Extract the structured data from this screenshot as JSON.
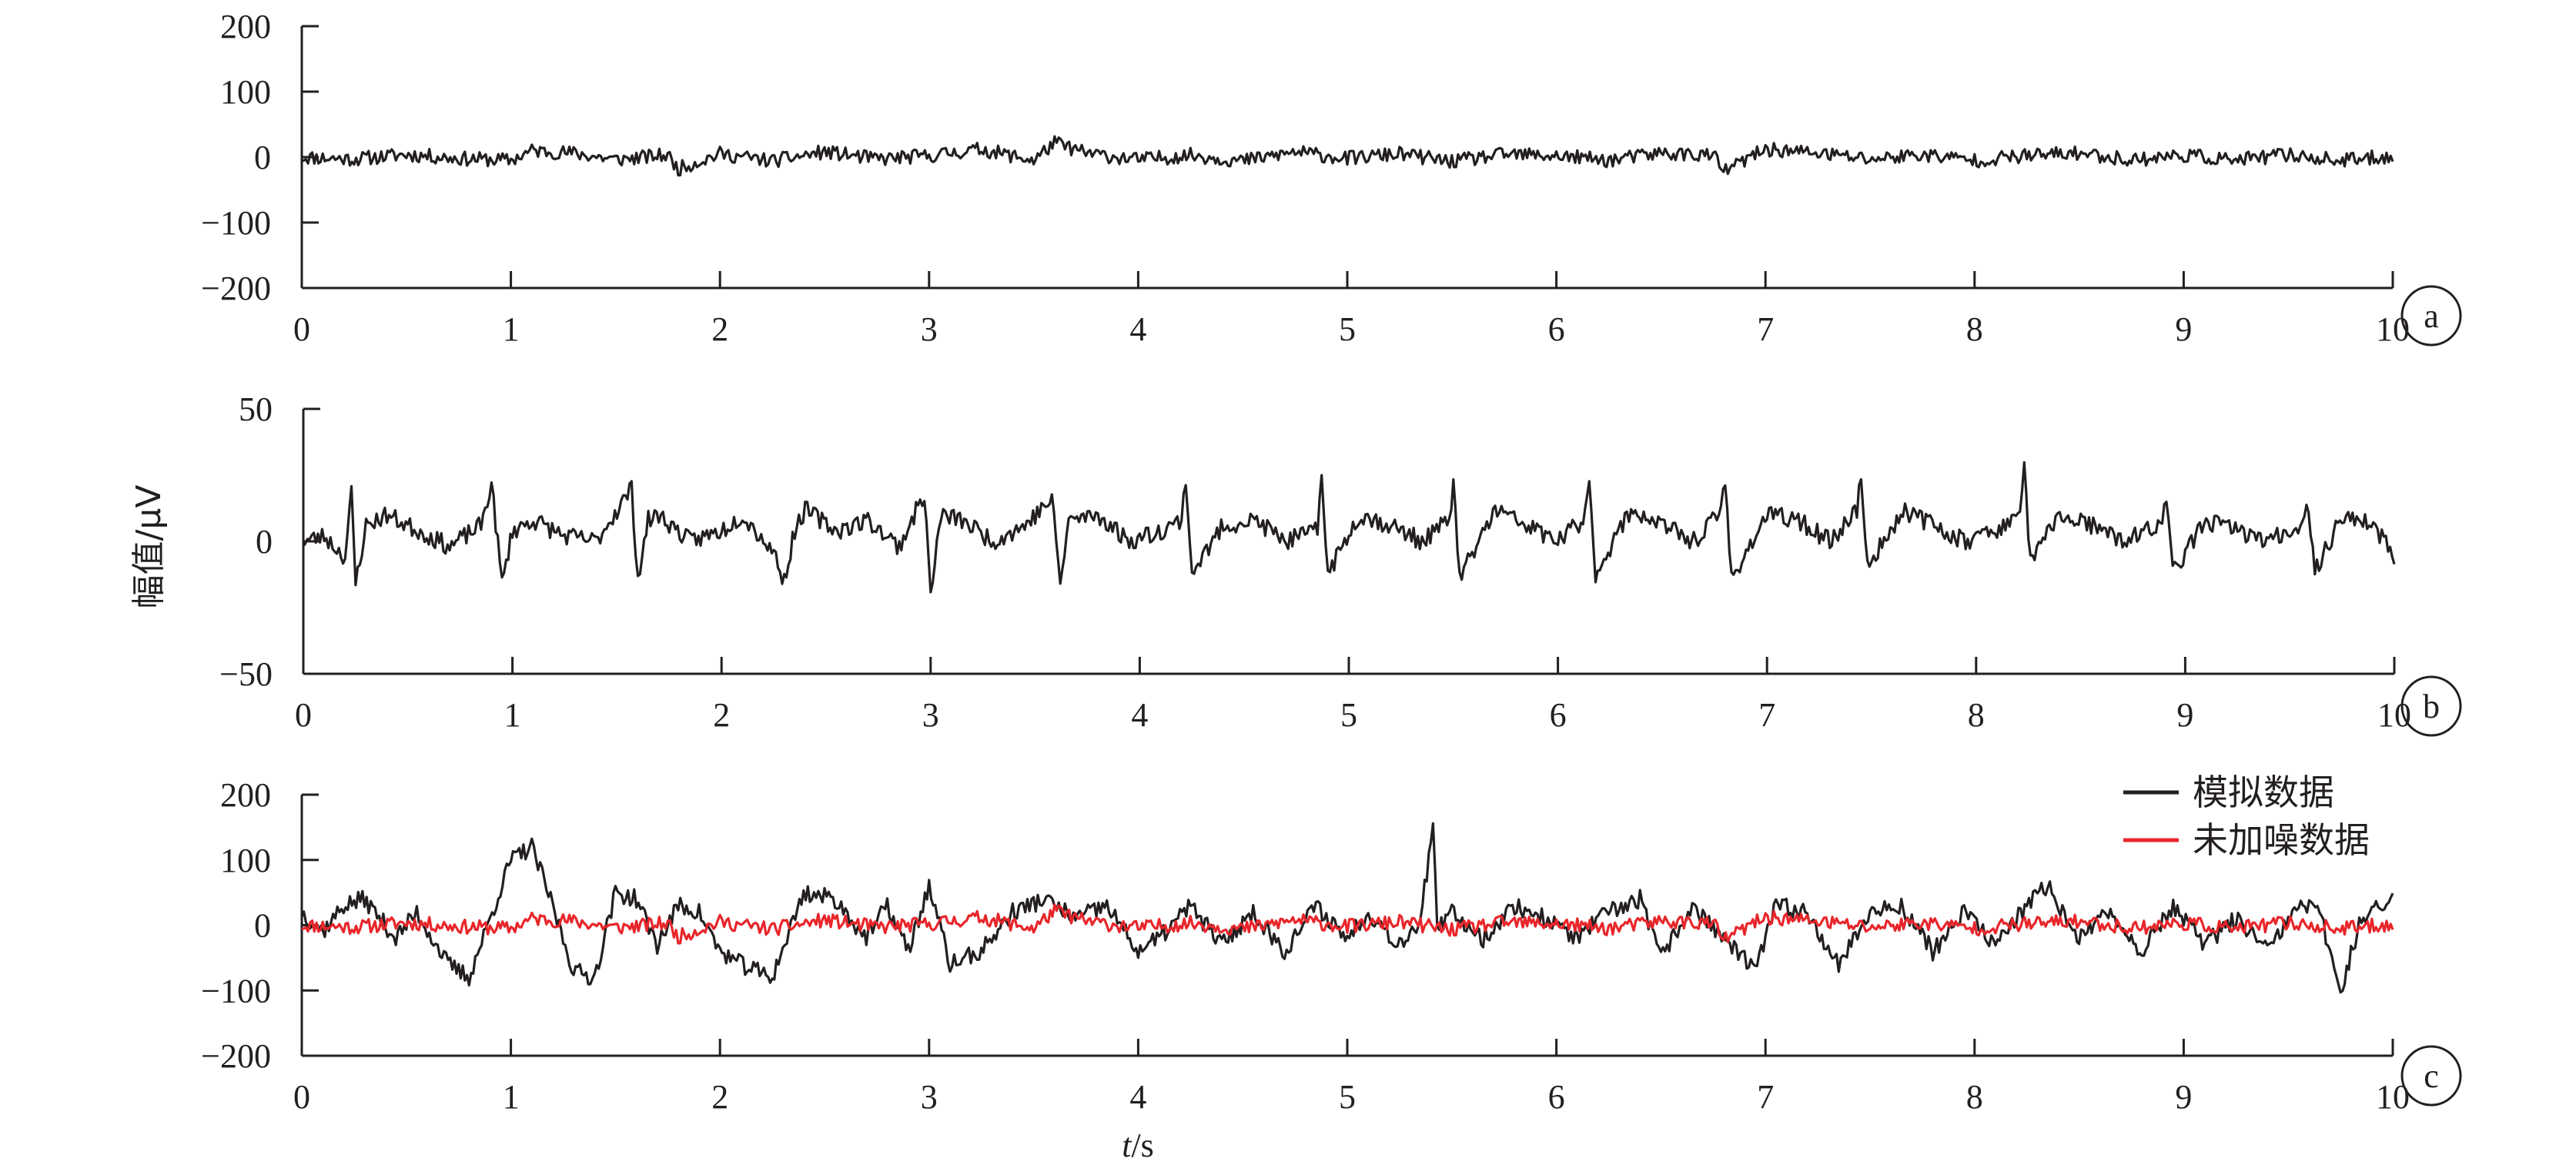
{
  "colors": {
    "axis": "#231f20",
    "simulated": "#231f20",
    "clean": "#e8262b"
  },
  "y_axis_label": "幅值/μV",
  "x_axis_label_italic": "t",
  "x_axis_label_unit": "/s",
  "chart_data": [
    {
      "panel": "a",
      "type": "line",
      "xlim": [
        0,
        10
      ],
      "ylim": [
        -200,
        200
      ],
      "x_ticks": [
        0,
        1,
        2,
        3,
        4,
        5,
        6,
        7,
        8,
        9,
        10
      ],
      "y_ticks": [
        200,
        100,
        0,
        -100,
        -200
      ],
      "y_tick_labels": [
        "200",
        "100",
        "0",
        "−100",
        "−200"
      ],
      "series": [
        {
          "color": "#231f20",
          "x": [
            0.0,
            0.25,
            0.5,
            0.75,
            1.0,
            1.1,
            1.3,
            1.5,
            1.75,
            1.8,
            2.0,
            2.25,
            2.5,
            2.75,
            3.0,
            3.25,
            3.5,
            3.6,
            3.75,
            4.0,
            4.25,
            4.5,
            4.75,
            5.0,
            5.25,
            5.5,
            5.75,
            6.0,
            6.25,
            6.5,
            6.75,
            6.8,
            7.0,
            7.25,
            7.5,
            7.75,
            8.0,
            8.25,
            8.5,
            8.75,
            9.0,
            9.25,
            9.5,
            9.75,
            10.0
          ],
          "values": [
            0,
            -3,
            4,
            -2,
            -5,
            10,
            6,
            -4,
            3,
            -18,
            5,
            -6,
            8,
            -3,
            2,
            12,
            -5,
            22,
            6,
            -4,
            3,
            -6,
            8,
            -2,
            5,
            -7,
            4,
            2,
            -5,
            6,
            3,
            -22,
            12,
            6,
            -3,
            4,
            -5,
            2,
            6,
            -4,
            3,
            -5,
            4,
            -6,
            2
          ],
          "step": 0.01,
          "noise": 11,
          "seed": 11
        }
      ]
    },
    {
      "panel": "b",
      "type": "line",
      "xlim": [
        0,
        10
      ],
      "ylim": [
        -50,
        50
      ],
      "x_ticks": [
        0,
        1,
        2,
        3,
        4,
        5,
        6,
        7,
        8,
        9,
        10
      ],
      "y_ticks": [
        50,
        0,
        -50
      ],
      "y_tick_labels": [
        "50",
        "0",
        "−50"
      ],
      "series": [
        {
          "color": "#231f20",
          "x": [
            0.0,
            0.1,
            0.2,
            0.23,
            0.25,
            0.3,
            0.4,
            0.55,
            0.7,
            0.85,
            0.9,
            0.95,
            1.0,
            1.1,
            1.25,
            1.4,
            1.57,
            1.6,
            1.65,
            1.7,
            1.85,
            2.0,
            2.1,
            2.25,
            2.3,
            2.35,
            2.4,
            2.55,
            2.7,
            2.85,
            2.97,
            3.0,
            3.05,
            3.15,
            3.3,
            3.45,
            3.58,
            3.62,
            3.66,
            3.8,
            3.95,
            4.1,
            4.2,
            4.22,
            4.25,
            4.4,
            4.55,
            4.7,
            4.85,
            4.87,
            4.9,
            5.05,
            5.2,
            5.35,
            5.48,
            5.5,
            5.53,
            5.7,
            5.85,
            6.0,
            6.12,
            6.15,
            6.18,
            6.35,
            6.5,
            6.65,
            6.77,
            6.8,
            6.83,
            7.0,
            7.15,
            7.3,
            7.43,
            7.45,
            7.48,
            7.65,
            7.8,
            7.95,
            8.2,
            8.23,
            8.26,
            8.4,
            8.55,
            8.7,
            8.88,
            8.91,
            8.94,
            9.1,
            9.25,
            9.4,
            9.55,
            9.58,
            9.62,
            9.75,
            9.9,
            10.0
          ],
          "values": [
            0,
            2,
            -6,
            18,
            -16,
            6,
            10,
            4,
            -2,
            6,
            22,
            -16,
            4,
            8,
            2,
            0,
            20,
            -14,
            8,
            10,
            0,
            4,
            10,
            -4,
            -15,
            4,
            12,
            4,
            8,
            -2,
            18,
            -20,
            10,
            8,
            0,
            6,
            16,
            -16,
            8,
            10,
            0,
            4,
            8,
            24,
            -12,
            6,
            8,
            0,
            4,
            26,
            -12,
            10,
            6,
            0,
            8,
            22,
            -14,
            12,
            6,
            0,
            8,
            20,
            -12,
            12,
            6,
            0,
            10,
            22,
            -14,
            10,
            8,
            0,
            12,
            25,
            -10,
            12,
            6,
            0,
            8,
            28,
            -8,
            10,
            6,
            0,
            6,
            18,
            -12,
            8,
            4,
            0,
            6,
            16,
            -12,
            10,
            6,
            -6
          ],
          "step": 0.01,
          "noise": 3.5,
          "seed": 23
        }
      ]
    },
    {
      "panel": "c",
      "type": "line",
      "xlim": [
        0,
        10
      ],
      "ylim": [
        -200,
        200
      ],
      "x_ticks": [
        0,
        1,
        2,
        3,
        4,
        5,
        6,
        7,
        8,
        9,
        10
      ],
      "y_ticks": [
        200,
        100,
        0,
        -100,
        -200
      ],
      "y_tick_labels": [
        "200",
        "100",
        "0",
        "−100",
        "−200"
      ],
      "legend": "top-right",
      "series": [
        {
          "name": "模拟数据",
          "color": "#231f20",
          "x": [
            0.0,
            0.1,
            0.2,
            0.3,
            0.45,
            0.55,
            0.7,
            0.8,
            0.9,
            1.0,
            1.1,
            1.2,
            1.3,
            1.4,
            1.5,
            1.6,
            1.7,
            1.8,
            1.9,
            2.0,
            2.1,
            2.25,
            2.4,
            2.55,
            2.7,
            2.8,
            2.9,
            3.0,
            3.1,
            3.25,
            3.4,
            3.55,
            3.7,
            3.85,
            4.0,
            4.1,
            4.25,
            4.4,
            4.55,
            4.7,
            4.85,
            5.0,
            5.1,
            5.25,
            5.35,
            5.41,
            5.43,
            5.5,
            5.65,
            5.8,
            5.95,
            6.1,
            6.25,
            6.4,
            6.5,
            6.65,
            6.8,
            6.95,
            7.05,
            7.2,
            7.35,
            7.5,
            7.65,
            7.8,
            7.95,
            8.1,
            8.25,
            8.35,
            8.5,
            8.65,
            8.8,
            8.95,
            9.1,
            9.25,
            9.4,
            9.55,
            9.65,
            9.75,
            9.85,
            10.0
          ],
          "values": [
            20,
            -10,
            30,
            40,
            -20,
            20,
            -60,
            -80,
            10,
            100,
            120,
            30,
            -70,
            -80,
            50,
            40,
            -30,
            30,
            20,
            -40,
            -60,
            -80,
            50,
            40,
            -20,
            30,
            -40,
            60,
            -60,
            -40,
            20,
            40,
            10,
            30,
            -40,
            -20,
            30,
            -30,
            20,
            -40,
            30,
            -20,
            20,
            -30,
            10,
            150,
            -10,
            20,
            -20,
            30,
            10,
            -20,
            20,
            40,
            -50,
            30,
            -20,
            -70,
            30,
            20,
            -60,
            20,
            30,
            -40,
            20,
            -30,
            30,
            60,
            -20,
            20,
            -40,
            30,
            -30,
            10,
            -40,
            30,
            20,
            -100,
            10,
            40
          ],
          "step": 0.01,
          "noise": 14,
          "seed": 37
        },
        {
          "name": "未加噪数据",
          "color": "#e8262b",
          "x": [
            0.0,
            0.25,
            0.5,
            0.75,
            1.0,
            1.1,
            1.3,
            1.5,
            1.75,
            1.8,
            2.0,
            2.25,
            2.5,
            2.75,
            3.0,
            3.25,
            3.5,
            3.6,
            3.75,
            4.0,
            4.25,
            4.5,
            4.75,
            5.0,
            5.25,
            5.5,
            5.75,
            6.0,
            6.25,
            6.5,
            6.75,
            6.8,
            7.0,
            7.25,
            7.5,
            7.75,
            8.0,
            8.25,
            8.5,
            8.75,
            9.0,
            9.25,
            9.5,
            9.75,
            10.0
          ],
          "values": [
            0,
            -3,
            4,
            -2,
            -5,
            10,
            6,
            -4,
            3,
            -18,
            5,
            -6,
            8,
            -3,
            2,
            12,
            -5,
            22,
            6,
            -4,
            3,
            -6,
            8,
            -2,
            5,
            -7,
            4,
            2,
            -5,
            6,
            3,
            -22,
            12,
            6,
            -3,
            4,
            -5,
            2,
            6,
            -4,
            3,
            -5,
            4,
            -6,
            2
          ],
          "step": 0.01,
          "noise": 11,
          "seed": 11
        }
      ]
    }
  ]
}
